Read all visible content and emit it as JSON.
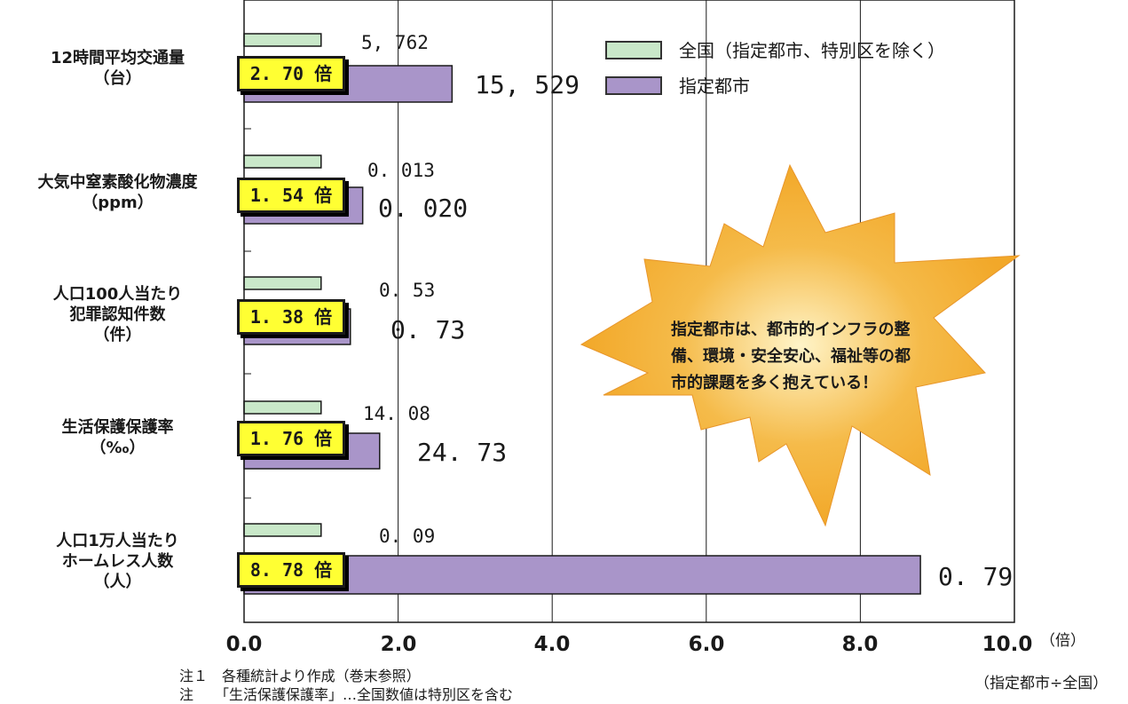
{
  "chart_data": {
    "type": "bar",
    "orientation": "horizontal",
    "categories": [
      "12時間平均交通量\n（台）",
      "大気中窒素酸化物濃度\n（ppm）",
      "人口100人当たり\n犯罪認知件数\n（件）",
      "生活保護保護率\n（‰）",
      "人口1万人当たり\nホームレス人数\n（人）"
    ],
    "series": [
      {
        "name": "全国（指定都市、特別区を除く）",
        "color": "#c9e8c9",
        "values": [
          1,
          1,
          1,
          1,
          1
        ],
        "labels": [
          "5, 762",
          "0. 013",
          "0. 53",
          "14. 08",
          "0. 09"
        ]
      },
      {
        "name": "指定都市",
        "color": "#a995c9",
        "values": [
          2.7,
          1.54,
          1.38,
          1.76,
          8.78
        ],
        "labels": [
          "15, 529",
          "0. 020",
          "0. 73",
          "24. 73",
          "0. 79"
        ]
      }
    ],
    "ratio_labels": [
      "2. 70 倍",
      "1. 54 倍",
      "1. 38 倍",
      "1. 76 倍",
      "8. 78 倍"
    ],
    "x_ticks": [
      "0.0",
      "2.0",
      "4.0",
      "6.0",
      "8.0",
      "10.0"
    ],
    "xlim": [
      0,
      10
    ],
    "x_unit": "（倍）",
    "x_axis_note": "（指定都市÷全国）",
    "grid": true,
    "legend_position": "top-right",
    "callout": "指定都市は、都市的インフラの整\n備、環境・安全安心、福祉等の都\n市的課題を多く抱えている！"
  },
  "notes": [
    "注１　各種統計より作成（巻末参照）",
    "注　　「生活保護保護率」…全国数値は特別区を含む"
  ],
  "colors": {
    "burst": "#f2a829",
    "burst_center": "#fff4c8",
    "ratio_box": "#ffff33"
  }
}
